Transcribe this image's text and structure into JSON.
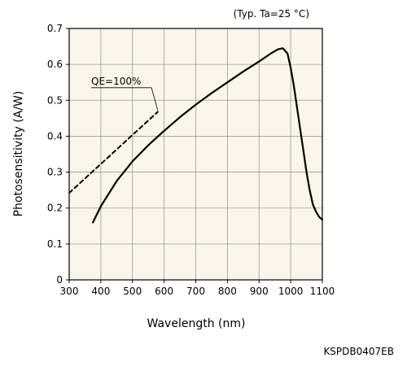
{
  "chart_data": {
    "type": "line",
    "condition_label": "(Typ. Ta=25 °C)",
    "xlabel": "Wavelength (nm)",
    "ylabel": "Photosensitivity (A/W)",
    "document_code": "KSPDB0407EB",
    "xlim": [
      300,
      1100
    ],
    "ylim": [
      0,
      0.7
    ],
    "x_ticks": [
      300,
      400,
      500,
      600,
      700,
      800,
      900,
      1000,
      1100
    ],
    "y_ticks": [
      0,
      0.1,
      0.2,
      0.3,
      0.4,
      0.5,
      0.6,
      0.7
    ],
    "y_tick_labels": [
      "0",
      "0.1",
      "0.2",
      "0.3",
      "0.4",
      "0.5",
      "0.6",
      "0.7"
    ],
    "grid": true,
    "plot_background": "#f8f6ea",
    "grid_color": "#9a9a9a",
    "series": [
      {
        "name": "QE=100%",
        "style": "dashed",
        "color": "#000000",
        "x": [
          300,
          580
        ],
        "y": [
          0.242,
          0.468
        ]
      },
      {
        "style": "solid",
        "color": "#000000",
        "x": [
          375,
          400,
          450,
          500,
          550,
          600,
          650,
          700,
          750,
          800,
          850,
          900,
          940,
          960,
          975,
          990,
          1000,
          1010,
          1020,
          1030,
          1040,
          1050,
          1060,
          1070,
          1080,
          1090,
          1100
        ],
        "y": [
          0.16,
          0.205,
          0.275,
          0.33,
          0.375,
          0.415,
          0.453,
          0.488,
          0.52,
          0.55,
          0.58,
          0.608,
          0.632,
          0.642,
          0.645,
          0.63,
          0.59,
          0.54,
          0.48,
          0.42,
          0.36,
          0.3,
          0.25,
          0.21,
          0.19,
          0.175,
          0.168
        ]
      }
    ],
    "annotations": [
      {
        "text": "QE=100%",
        "leader_from": [
          580,
          0.472
        ],
        "leader_to": [
          560,
          0.535
        ]
      }
    ]
  }
}
